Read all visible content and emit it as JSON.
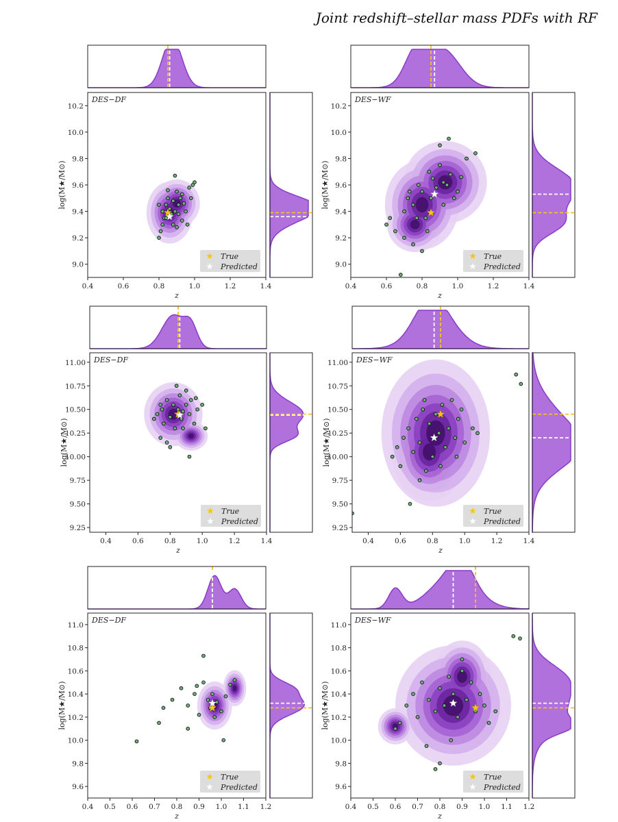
{
  "title": "Joint redshift–stellar mass PDFs with RF",
  "colors": {
    "kde": "#9b3fd4",
    "kde_dark": "#3d0a5e",
    "marginal_fill": "#b071dc",
    "marginal_line": "#8a3ac8",
    "true": "#f5c518",
    "predicted": "#ffffff",
    "point_fill": "#6fb07a",
    "point_edge": "#111111",
    "legend_bg": "#dddddd"
  },
  "legend": {
    "true_label": "True",
    "predicted_label": "Predicted",
    "placement": "lower-right"
  },
  "chart_data": [
    {
      "type": "scatter",
      "panel": "DES−DF",
      "label": "DES−DF",
      "xlabel": "z",
      "ylabel": "log(M★/M⊙)",
      "xlim": [
        0.4,
        1.4
      ],
      "ylim": [
        8.9,
        10.3
      ],
      "xticks": [
        0.4,
        0.6,
        0.8,
        1.0,
        1.2,
        1.4
      ],
      "xticklabels": [
        "0.4",
        "0.6",
        "0.8",
        "1.0",
        "1.2",
        "1.4"
      ],
      "yticks": [
        9.0,
        9.2,
        9.4,
        9.6,
        9.8,
        10.0,
        10.2
      ],
      "yticklabels": [
        "9.0",
        "9.2",
        "9.4",
        "9.6",
        "9.8",
        "10.0",
        "10.2"
      ],
      "true": {
        "x": 0.85,
        "y": 9.39
      },
      "predicted": {
        "x": 0.86,
        "y": 9.36
      },
      "kde_blobs": [
        {
          "x": 0.86,
          "y": 9.39,
          "sx": 0.05,
          "sy": 0.09
        },
        {
          "x": 0.9,
          "y": 9.46,
          "sx": 0.05,
          "sy": 0.07
        }
      ],
      "points": [
        [
          0.8,
          9.2
        ],
        [
          0.81,
          9.25
        ],
        [
          0.82,
          9.3
        ],
        [
          0.83,
          9.35
        ],
        [
          0.84,
          9.45
        ],
        [
          0.85,
          9.5
        ],
        [
          0.86,
          9.42
        ],
        [
          0.87,
          9.38
        ],
        [
          0.88,
          9.48
        ],
        [
          0.89,
          9.4
        ],
        [
          0.9,
          9.55
        ],
        [
          0.91,
          9.45
        ],
        [
          0.92,
          9.5
        ],
        [
          0.93,
          9.33
        ],
        [
          0.94,
          9.46
        ],
        [
          0.95,
          9.4
        ],
        [
          0.96,
          9.3
        ],
        [
          0.97,
          9.58
        ],
        [
          0.98,
          9.5
        ],
        [
          0.99,
          9.6
        ],
        [
          0.82,
          9.4
        ],
        [
          0.88,
          9.3
        ],
        [
          0.9,
          9.28
        ],
        [
          0.85,
          9.56
        ],
        [
          0.8,
          9.45
        ],
        [
          0.93,
          9.53
        ],
        [
          0.89,
          9.67
        ],
        [
          1.0,
          9.62
        ],
        [
          0.84,
          9.35
        ],
        [
          0.91,
          9.38
        ]
      ],
      "marg_x_peak": 0.86,
      "marg_y_peak": 9.39
    },
    {
      "type": "scatter",
      "panel": "DES−WF",
      "label": "DES−WF",
      "xlabel": "z",
      "ylabel": "log(M★/M⊙)",
      "xlim": [
        0.4,
        1.4
      ],
      "ylim": [
        8.9,
        10.3
      ],
      "xticks": [
        0.4,
        0.6,
        0.8,
        1.0,
        1.2,
        1.4
      ],
      "xticklabels": [
        "0.4",
        "0.6",
        "0.8",
        "1.0",
        "1.2",
        "1.4"
      ],
      "yticks": [
        9.0,
        9.2,
        9.4,
        9.6,
        9.8,
        10.0,
        10.2
      ],
      "yticklabels": [
        "9.0",
        "9.2",
        "9.4",
        "9.6",
        "9.8",
        "10.0",
        "10.2"
      ],
      "true": {
        "x": 0.85,
        "y": 9.39
      },
      "predicted": {
        "x": 0.87,
        "y": 9.53
      },
      "kde_blobs": [
        {
          "x": 0.93,
          "y": 9.62,
          "sx": 0.09,
          "sy": 0.12
        },
        {
          "x": 0.8,
          "y": 9.45,
          "sx": 0.08,
          "sy": 0.13
        },
        {
          "x": 0.76,
          "y": 9.3,
          "sx": 0.06,
          "sy": 0.08
        }
      ],
      "points": [
        [
          0.6,
          9.3
        ],
        [
          0.65,
          9.25
        ],
        [
          0.7,
          9.4
        ],
        [
          0.72,
          9.5
        ],
        [
          0.75,
          9.45
        ],
        [
          0.78,
          9.6
        ],
        [
          0.8,
          9.55
        ],
        [
          0.82,
          9.35
        ],
        [
          0.84,
          9.7
        ],
        [
          0.86,
          9.65
        ],
        [
          0.88,
          9.58
        ],
        [
          0.9,
          9.75
        ],
        [
          0.92,
          9.62
        ],
        [
          0.94,
          9.6
        ],
        [
          0.96,
          9.68
        ],
        [
          0.98,
          9.5
        ],
        [
          1.0,
          9.55
        ],
        [
          1.02,
          9.66
        ],
        [
          1.05,
          9.8
        ],
        [
          0.7,
          9.2
        ],
        [
          0.75,
          9.15
        ],
        [
          0.8,
          9.1
        ],
        [
          0.68,
          8.92
        ],
        [
          0.85,
          9.5
        ],
        [
          0.9,
          9.9
        ],
        [
          0.95,
          9.95
        ],
        [
          0.83,
          9.25
        ],
        [
          0.77,
          9.35
        ],
        [
          0.73,
          9.55
        ],
        [
          0.92,
          9.45
        ],
        [
          1.1,
          9.84
        ],
        [
          0.62,
          9.35
        ]
      ],
      "marg_x_peak": 0.85,
      "marg_y_peak": 9.6
    },
    {
      "type": "scatter",
      "panel": "DES−DF",
      "label": "DES−DF",
      "xlabel": "z",
      "ylabel": "log(M★/M⊙)",
      "xlim": [
        0.3,
        1.4
      ],
      "ylim": [
        9.2,
        11.1
      ],
      "xticks": [
        0.4,
        0.6,
        0.8,
        1.0,
        1.2,
        1.4
      ],
      "xticklabels": [
        "0.4",
        "0.6",
        "0.8",
        "1.0",
        "1.2",
        "1.4"
      ],
      "yticks": [
        9.25,
        9.5,
        9.75,
        10.0,
        10.25,
        10.5,
        10.75,
        11.0
      ],
      "yticklabels": [
        "9.25",
        "9.50",
        "9.75",
        "10.00",
        "10.25",
        "10.50",
        "10.75",
        "11.00"
      ],
      "true": {
        "x": 0.85,
        "y": 10.45
      },
      "predicted": {
        "x": 0.86,
        "y": 10.44
      },
      "kde_blobs": [
        {
          "x": 0.82,
          "y": 10.45,
          "sx": 0.07,
          "sy": 0.13
        },
        {
          "x": 0.93,
          "y": 10.22,
          "sx": 0.04,
          "sy": 0.06
        }
      ],
      "points": [
        [
          0.7,
          10.4
        ],
        [
          0.72,
          10.45
        ],
        [
          0.75,
          10.5
        ],
        [
          0.76,
          10.35
        ],
        [
          0.78,
          10.6
        ],
        [
          0.8,
          10.42
        ],
        [
          0.82,
          10.55
        ],
        [
          0.83,
          10.3
        ],
        [
          0.85,
          10.5
        ],
        [
          0.86,
          10.65
        ],
        [
          0.87,
          10.4
        ],
        [
          0.88,
          10.3
        ],
        [
          0.9,
          10.55
        ],
        [
          0.92,
          10.45
        ],
        [
          0.93,
          10.6
        ],
        [
          0.95,
          10.35
        ],
        [
          0.97,
          10.5
        ],
        [
          1.0,
          10.55
        ],
        [
          1.02,
          10.3
        ],
        [
          0.74,
          10.2
        ],
        [
          0.78,
          10.15
        ],
        [
          0.92,
          10.0
        ],
        [
          0.8,
          10.1
        ],
        [
          0.84,
          10.75
        ],
        [
          0.9,
          10.7
        ],
        [
          0.96,
          10.62
        ],
        [
          0.74,
          10.55
        ],
        [
          0.88,
          10.48
        ]
      ],
      "marg_x_peak": 0.84,
      "marg_y_peak": 10.44
    },
    {
      "type": "scatter",
      "panel": "DES−WF",
      "label": "DES−WF",
      "xlabel": "z",
      "ylabel": "log(M★/M⊙)",
      "xlim": [
        0.3,
        1.4
      ],
      "ylim": [
        9.2,
        11.1
      ],
      "xticks": [
        0.4,
        0.6,
        0.8,
        1.0,
        1.2,
        1.4
      ],
      "xticklabels": [
        "0.4",
        "0.6",
        "0.8",
        "1.0",
        "1.2",
        "1.4"
      ],
      "yticks": [
        9.25,
        9.5,
        9.75,
        10.0,
        10.25,
        10.5,
        10.75,
        11.0
      ],
      "yticklabels": [
        "9.25",
        "9.50",
        "9.75",
        "10.00",
        "10.25",
        "10.50",
        "10.75",
        "11.00"
      ],
      "true": {
        "x": 0.85,
        "y": 10.45
      },
      "predicted": {
        "x": 0.81,
        "y": 10.2
      },
      "kde_blobs": [
        {
          "x": 0.82,
          "y": 10.25,
          "sx": 0.13,
          "sy": 0.3
        },
        {
          "x": 0.78,
          "y": 10.05,
          "sx": 0.09,
          "sy": 0.2
        }
      ],
      "points": [
        [
          0.55,
          10.0
        ],
        [
          0.58,
          10.1
        ],
        [
          0.6,
          9.9
        ],
        [
          0.62,
          10.2
        ],
        [
          0.65,
          10.3
        ],
        [
          0.68,
          10.05
        ],
        [
          0.7,
          10.4
        ],
        [
          0.72,
          10.15
        ],
        [
          0.74,
          10.5
        ],
        [
          0.76,
          9.85
        ],
        [
          0.78,
          10.35
        ],
        [
          0.8,
          10.0
        ],
        [
          0.82,
          10.45
        ],
        [
          0.84,
          10.25
        ],
        [
          0.86,
          10.55
        ],
        [
          0.88,
          10.1
        ],
        [
          0.9,
          10.3
        ],
        [
          0.92,
          10.6
        ],
        [
          0.94,
          10.2
        ],
        [
          0.96,
          10.4
        ],
        [
          0.98,
          10.5
        ],
        [
          1.0,
          10.15
        ],
        [
          1.05,
          10.3
        ],
        [
          1.08,
          10.25
        ],
        [
          0.66,
          9.5
        ],
        [
          0.3,
          9.4
        ],
        [
          1.32,
          10.87
        ],
        [
          1.35,
          10.77
        ],
        [
          0.72,
          9.75
        ],
        [
          0.85,
          9.9
        ],
        [
          0.75,
          10.6
        ],
        [
          0.95,
          10.0
        ]
      ],
      "marg_x_peak": 0.82,
      "marg_y_peak": 10.3
    },
    {
      "type": "scatter",
      "panel": "DES−DF",
      "label": "DES−DF",
      "xlabel": "z",
      "ylabel": "log(M★/M⊙)",
      "xlim": [
        0.4,
        1.2
      ],
      "ylim": [
        9.5,
        11.1
      ],
      "xticks": [
        0.4,
        0.5,
        0.6,
        0.7,
        0.8,
        0.9,
        1.0,
        1.1,
        1.2
      ],
      "xticklabels": [
        "0.4",
        "0.5",
        "0.6",
        "0.7",
        "0.8",
        "0.9",
        "1.0",
        "1.1",
        "1.2"
      ],
      "yticks": [
        9.6,
        9.8,
        10.0,
        10.2,
        10.4,
        10.6,
        10.8,
        11.0
      ],
      "yticklabels": [
        "9.6",
        "9.8",
        "10.0",
        "10.2",
        "10.4",
        "10.6",
        "10.8",
        "11.0"
      ],
      "true": {
        "x": 0.96,
        "y": 10.28
      },
      "predicted": {
        "x": 0.96,
        "y": 10.32
      },
      "kde_blobs": [
        {
          "x": 0.97,
          "y": 10.3,
          "sx": 0.03,
          "sy": 0.08
        },
        {
          "x": 1.06,
          "y": 10.45,
          "sx": 0.02,
          "sy": 0.06
        }
      ],
      "points": [
        [
          0.62,
          9.99
        ],
        [
          0.72,
          10.15
        ],
        [
          0.78,
          10.35
        ],
        [
          0.82,
          10.45
        ],
        [
          0.85,
          10.3
        ],
        [
          0.88,
          10.4
        ],
        [
          0.9,
          10.22
        ],
        [
          0.92,
          10.5
        ],
        [
          0.94,
          10.35
        ],
        [
          0.95,
          10.28
        ],
        [
          0.96,
          10.4
        ],
        [
          0.97,
          10.2
        ],
        [
          0.98,
          10.33
        ],
        [
          1.0,
          10.25
        ],
        [
          1.02,
          10.38
        ],
        [
          1.04,
          10.48
        ],
        [
          1.06,
          10.52
        ],
        [
          0.92,
          10.73
        ],
        [
          0.74,
          10.28
        ],
        [
          0.85,
          10.1
        ],
        [
          1.01,
          10.0
        ],
        [
          0.89,
          10.47
        ]
      ],
      "marg_x_peak": 0.97,
      "marg_y_peak": 10.3
    },
    {
      "type": "scatter",
      "panel": "DES−WF",
      "label": "DES−WF",
      "xlabel": "z",
      "ylabel": "log(M★/M⊙)",
      "xlim": [
        0.4,
        1.2
      ],
      "ylim": [
        9.5,
        11.1
      ],
      "xticks": [
        0.4,
        0.5,
        0.6,
        0.7,
        0.8,
        0.9,
        1.0,
        1.1,
        1.2
      ],
      "xticklabels": [
        "0.4",
        "0.5",
        "0.6",
        "0.7",
        "0.8",
        "0.9",
        "1.0",
        "1.1",
        "1.2"
      ],
      "yticks": [
        9.6,
        9.8,
        10.0,
        10.2,
        10.4,
        10.6,
        10.8,
        11.0
      ],
      "yticklabels": [
        "9.6",
        "9.8",
        "10.0",
        "10.2",
        "10.4",
        "10.6",
        "10.8",
        "11.0"
      ],
      "true": {
        "x": 0.96,
        "y": 10.28
      },
      "predicted": {
        "x": 0.86,
        "y": 10.32
      },
      "kde_blobs": [
        {
          "x": 0.86,
          "y": 10.3,
          "sx": 0.1,
          "sy": 0.2
        },
        {
          "x": 0.9,
          "y": 10.55,
          "sx": 0.05,
          "sy": 0.12
        },
        {
          "x": 0.6,
          "y": 10.12,
          "sx": 0.03,
          "sy": 0.06
        }
      ],
      "points": [
        [
          0.6,
          10.1
        ],
        [
          0.62,
          10.15
        ],
        [
          0.65,
          10.3
        ],
        [
          0.68,
          10.4
        ],
        [
          0.7,
          10.2
        ],
        [
          0.72,
          10.5
        ],
        [
          0.75,
          10.35
        ],
        [
          0.78,
          10.25
        ],
        [
          0.8,
          10.45
        ],
        [
          0.82,
          10.3
        ],
        [
          0.84,
          10.55
        ],
        [
          0.86,
          10.4
        ],
        [
          0.88,
          10.2
        ],
        [
          0.9,
          10.6
        ],
        [
          0.92,
          10.35
        ],
        [
          0.94,
          10.5
        ],
        [
          0.96,
          10.25
        ],
        [
          0.98,
          10.4
        ],
        [
          1.0,
          10.3
        ],
        [
          1.02,
          10.15
        ],
        [
          1.05,
          10.25
        ],
        [
          0.8,
          9.8
        ],
        [
          0.74,
          9.95
        ],
        [
          0.9,
          10.7
        ],
        [
          0.85,
          10.0
        ],
        [
          1.13,
          10.9
        ],
        [
          1.16,
          10.88
        ],
        [
          0.78,
          9.75
        ]
      ],
      "marg_x_peak": 0.9,
      "marg_y_peak": 10.3
    }
  ]
}
